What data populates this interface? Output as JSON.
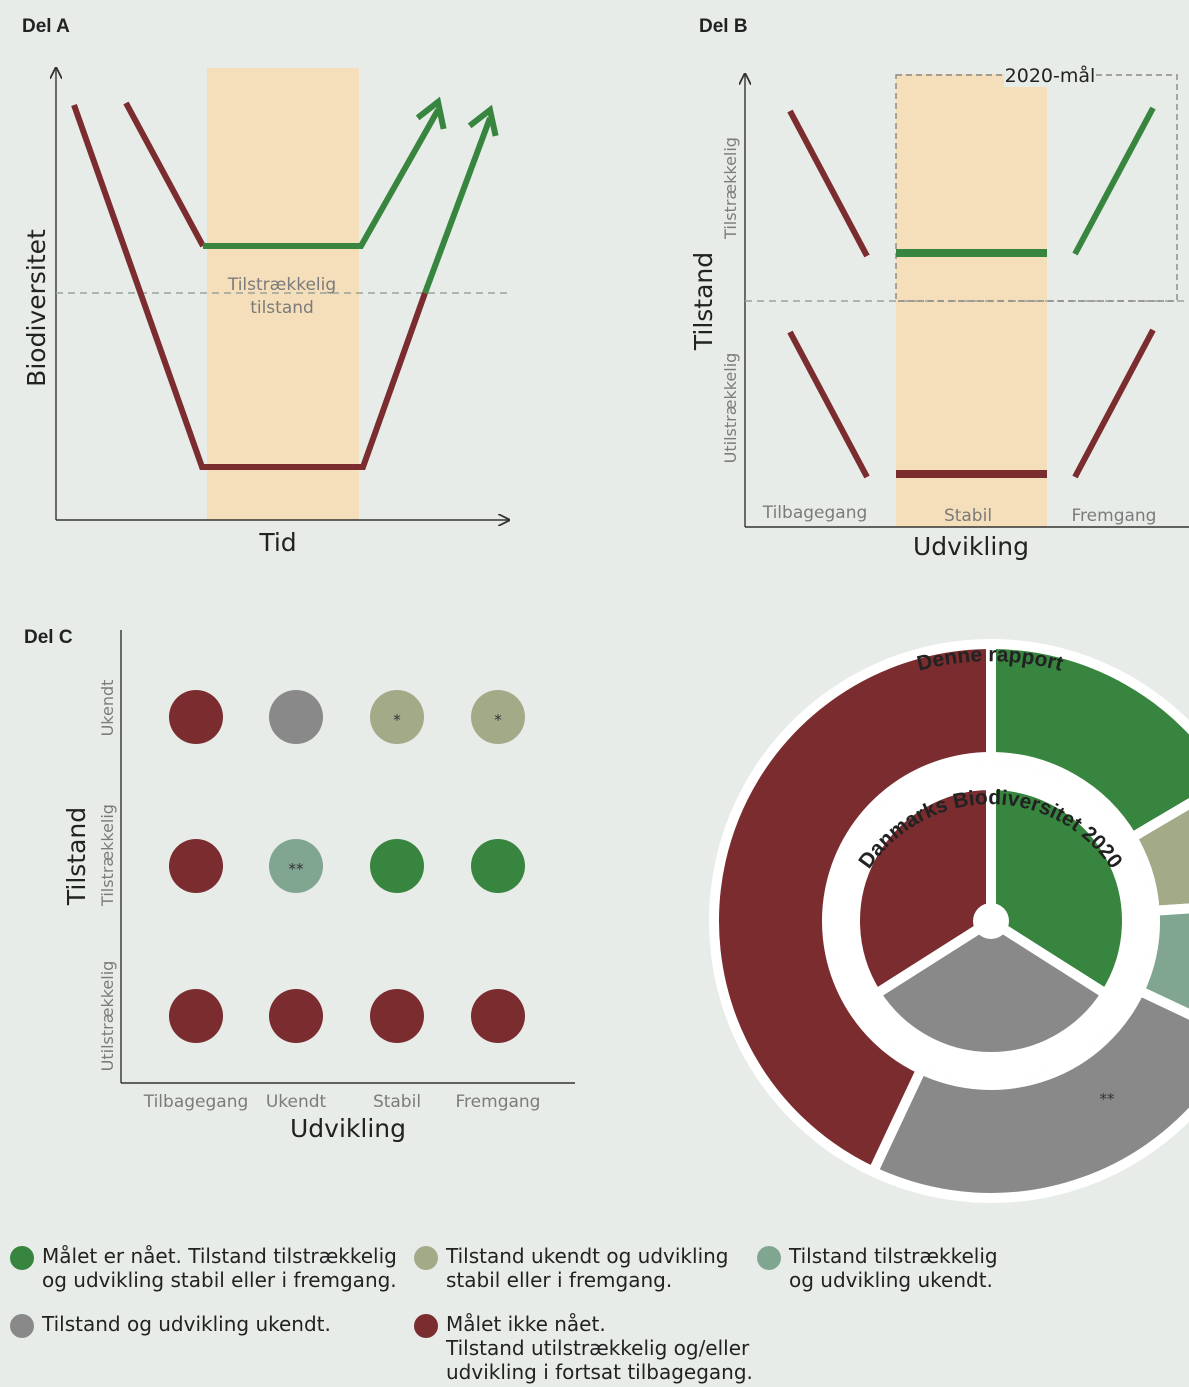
{
  "colors": {
    "green": "#37853f",
    "red": "#7a2c2f",
    "gray": "#898989",
    "olive": "#a2aa88",
    "teal": "#80a591",
    "band": "#f5dfba",
    "background": "#e8ece8"
  },
  "part_a": {
    "title": "Del A",
    "ylabel": "Biodiversitet",
    "xlabel": "Tid",
    "threshold_label_1": "Tilstrækkelig",
    "threshold_label_2": "tilstand"
  },
  "part_b": {
    "title": "Del B",
    "ylabel": "Tilstand",
    "xlabel": "Udvikling",
    "y_upper": "Tilstrækkelig",
    "y_lower": "Utilstrækkelig",
    "x_categories": [
      "Tilbagegang",
      "Stabil",
      "Fremgang"
    ],
    "goal_label": "2020-mål"
  },
  "part_c": {
    "title": "Del C",
    "ylabel": "Tilstand",
    "xlabel": "Udvikling",
    "rows": [
      "Ukendt",
      "Tilstrækkelig",
      "Utilstrækkelig"
    ],
    "columns": [
      "Tilbagegang",
      "Ukendt",
      "Stabil",
      "Fremgang"
    ],
    "cells": [
      [
        {
          "color": "red",
          "mark": ""
        },
        {
          "color": "gray",
          "mark": ""
        },
        {
          "color": "olive",
          "mark": "*"
        },
        {
          "color": "olive",
          "mark": "*"
        }
      ],
      [
        {
          "color": "red",
          "mark": ""
        },
        {
          "color": "teal",
          "mark": "**"
        },
        {
          "color": "green",
          "mark": ""
        },
        {
          "color": "green",
          "mark": ""
        }
      ],
      [
        {
          "color": "red",
          "mark": ""
        },
        {
          "color": "red",
          "mark": ""
        },
        {
          "color": "red",
          "mark": ""
        },
        {
          "color": "red",
          "mark": ""
        }
      ]
    ]
  },
  "donut": {
    "outer_label": "Denne rapport",
    "inner_label": "Danmarks Biodiversitet 2020",
    "outer_mark": "**"
  },
  "chart_data": [
    {
      "type": "pie",
      "name": "Denne rapport",
      "categories": [
        "Målet er nået",
        "Tilstand ukendt og udvikling stabil eller i fremgang",
        "Tilstand tilstrækkelig og udvikling ukendt",
        "Tilstand og udvikling ukendt",
        "Målet ikke nået"
      ],
      "values": [
        16.5,
        7.5,
        8,
        25,
        43
      ],
      "colors": [
        "green",
        "olive",
        "teal",
        "gray",
        "red"
      ]
    },
    {
      "type": "pie",
      "name": "Danmarks Biodiversitet 2020",
      "categories": [
        "Målet er nået",
        "Tilstand og udvikling ukendt",
        "Målet ikke nået"
      ],
      "values": [
        34,
        32,
        34
      ],
      "colors": [
        "green",
        "gray",
        "red"
      ]
    }
  ],
  "legend": [
    {
      "color": "green",
      "line1": "Målet er nået. Tilstand tilstrækkelig",
      "line2": "og udvikling stabil eller i fremgang.",
      "line3": ""
    },
    {
      "color": "olive",
      "line1": "Tilstand ukendt og udvikling",
      "line2": "stabil eller i fremgang.",
      "line3": ""
    },
    {
      "color": "teal",
      "line1": "Tilstand tilstrækkelig",
      "line2": "og udvikling ukendt.",
      "line3": ""
    },
    {
      "color": "gray",
      "line1": "Tilstand og udvikling ukendt.",
      "line2": "",
      "line3": ""
    },
    {
      "color": "red",
      "line1": "Målet ikke nået.",
      "line2": "Tilstand utilstrækkelig og/eller",
      "line3": "udvikling i fortsat tilbagegang."
    }
  ]
}
